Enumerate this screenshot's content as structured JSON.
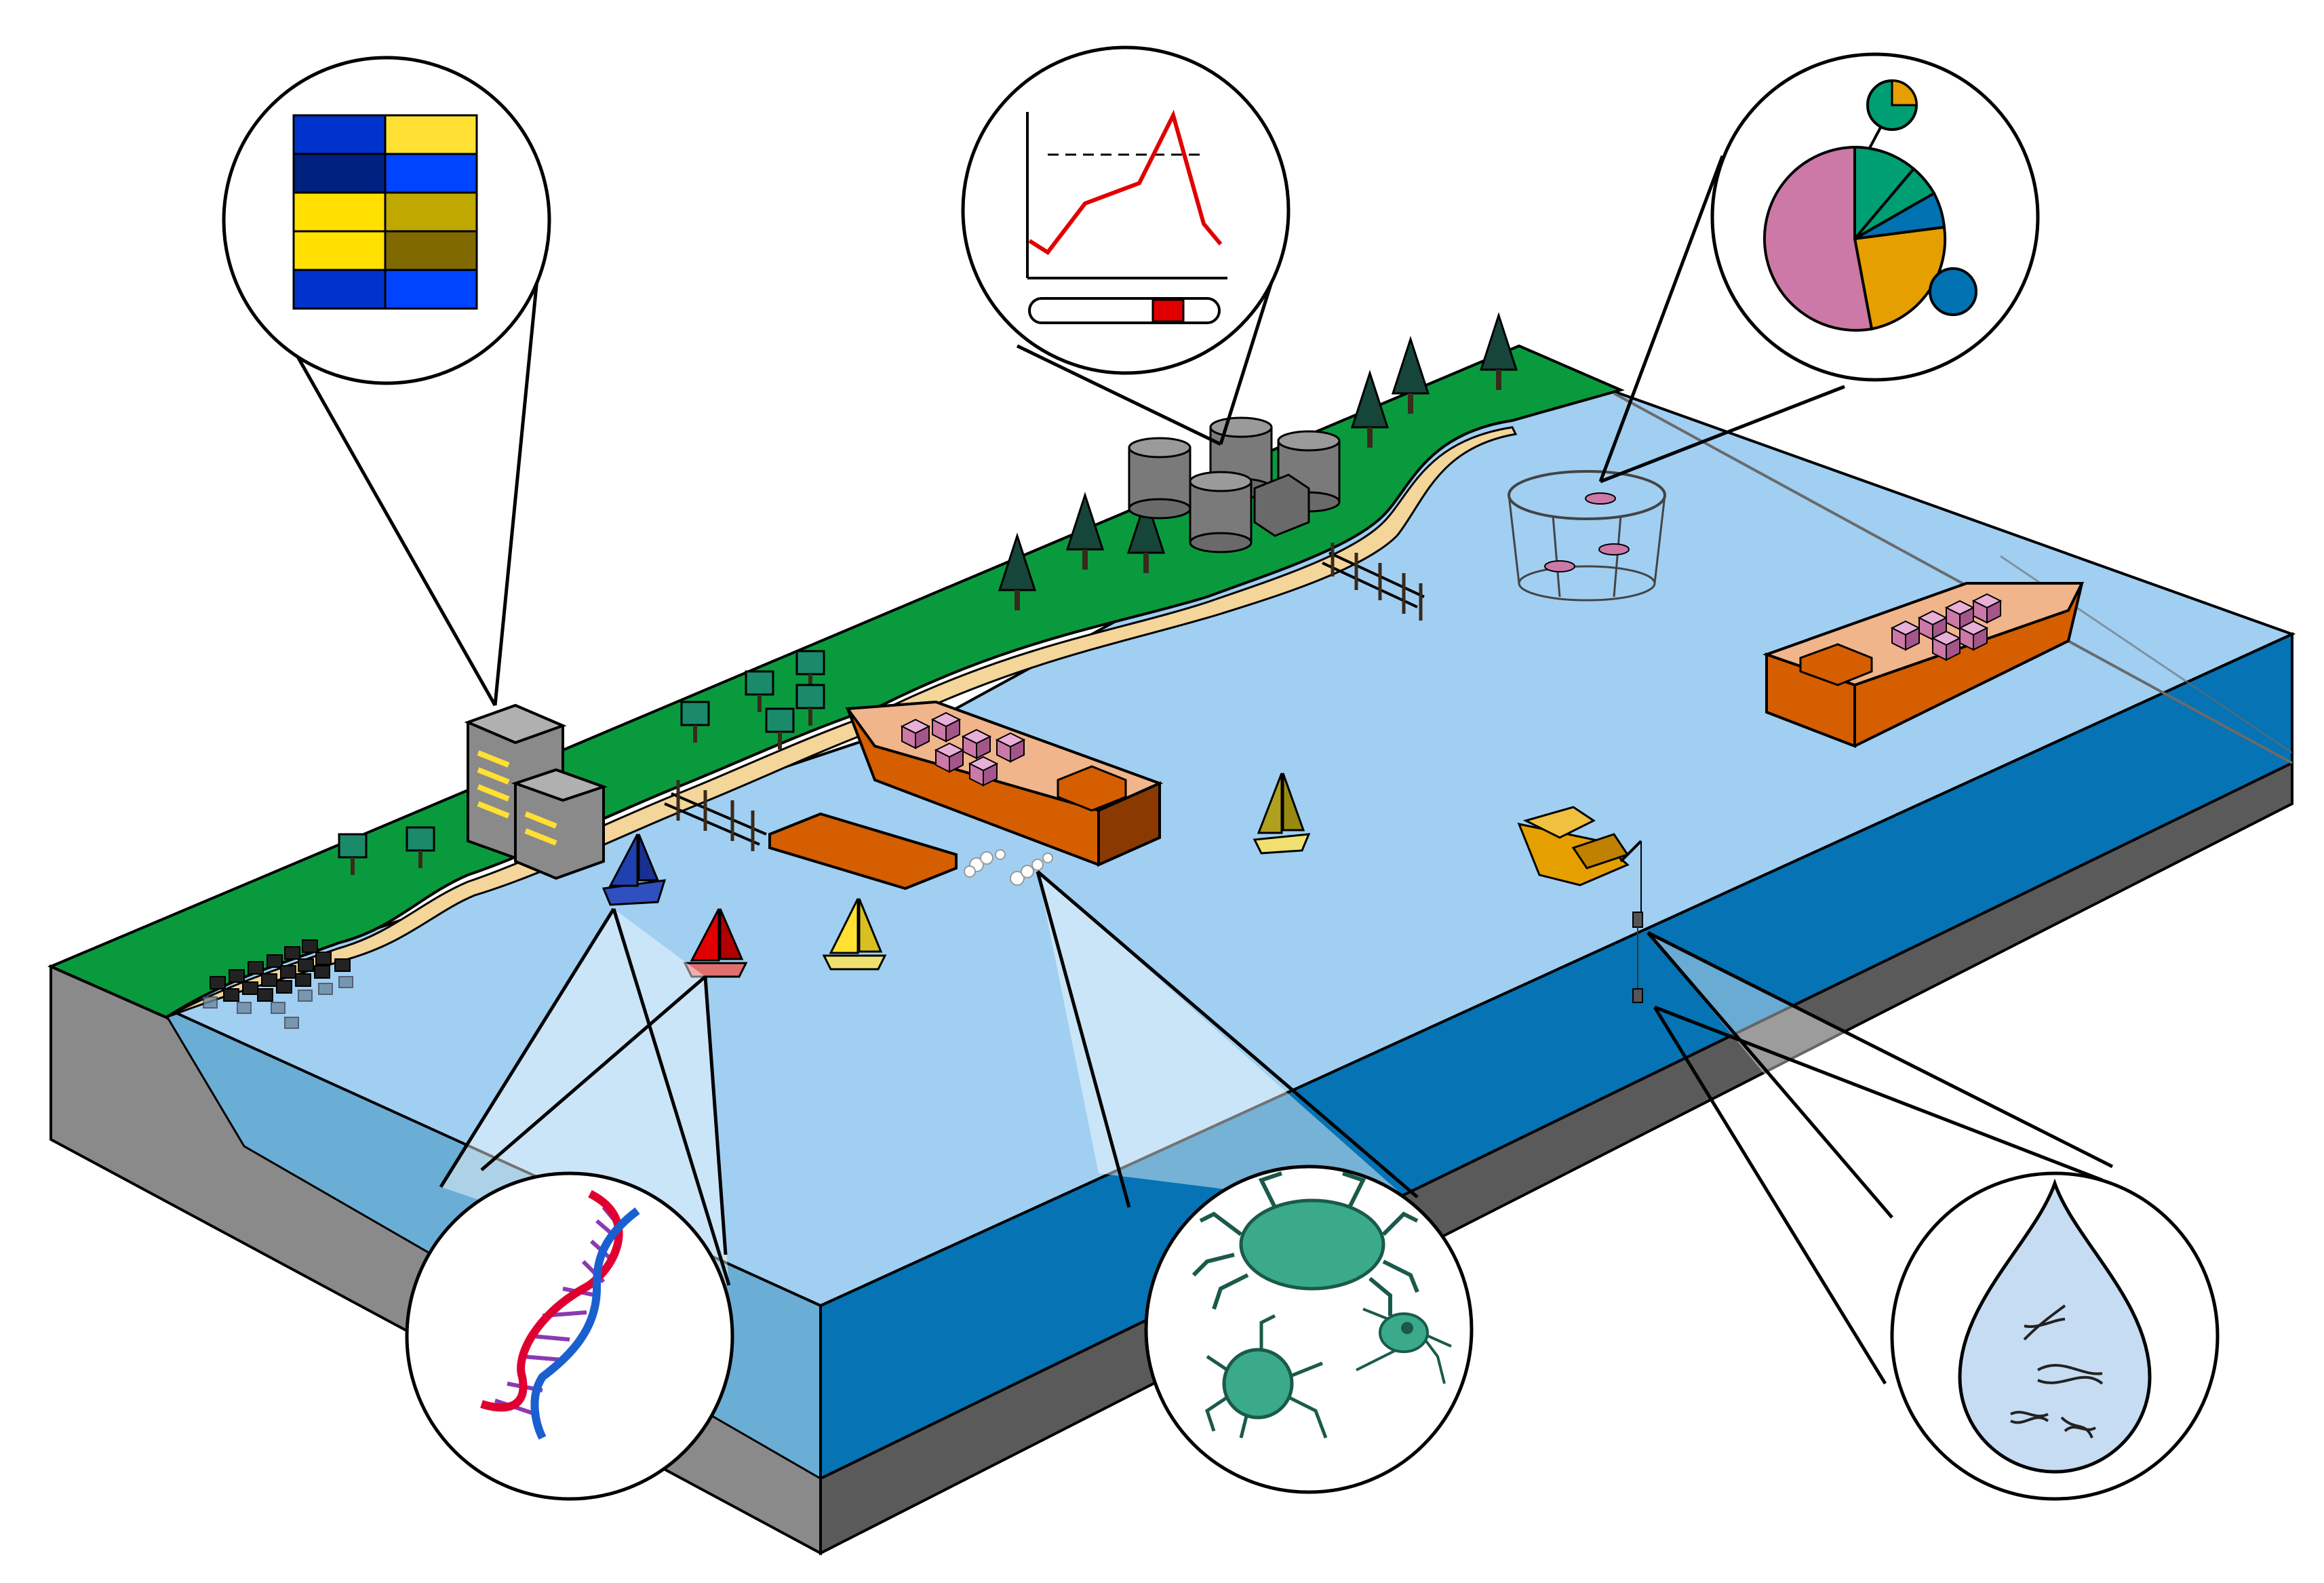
{
  "diagram": {
    "title": "",
    "icons": {
      "heatmap": "heatmap-grid-icon",
      "line_chart": "threshold-line-chart-icon",
      "pie_chart": "pie-chart-network-icon",
      "dna": "dna-double-helix-icon",
      "crabs": "crab-and-larva-icon",
      "droplet": "water-droplet-edna-icon"
    },
    "colors": {
      "land": "#0a9a3e",
      "water_surface": "#a0cff2",
      "water_side": "#0573b4",
      "water_shallow": "#6aaed6",
      "bedrock": "#8a8a8a",
      "bedrock_dark": "#5a5a5a",
      "sand": "#f4d59a",
      "ship_hull": "#d55e00",
      "ship_deck": "#f0b58b",
      "cargo": "#cc79a7",
      "heat_blue": "#0033cc",
      "heat_yellow": "#ffe033",
      "alert_red": "#e00000",
      "pie_pink": "#cc79a7",
      "pie_green": "#009e73",
      "pie_orange": "#e69f00",
      "pie_blue": "#0072b2",
      "crab_green": "#3aaa8a"
    }
  }
}
